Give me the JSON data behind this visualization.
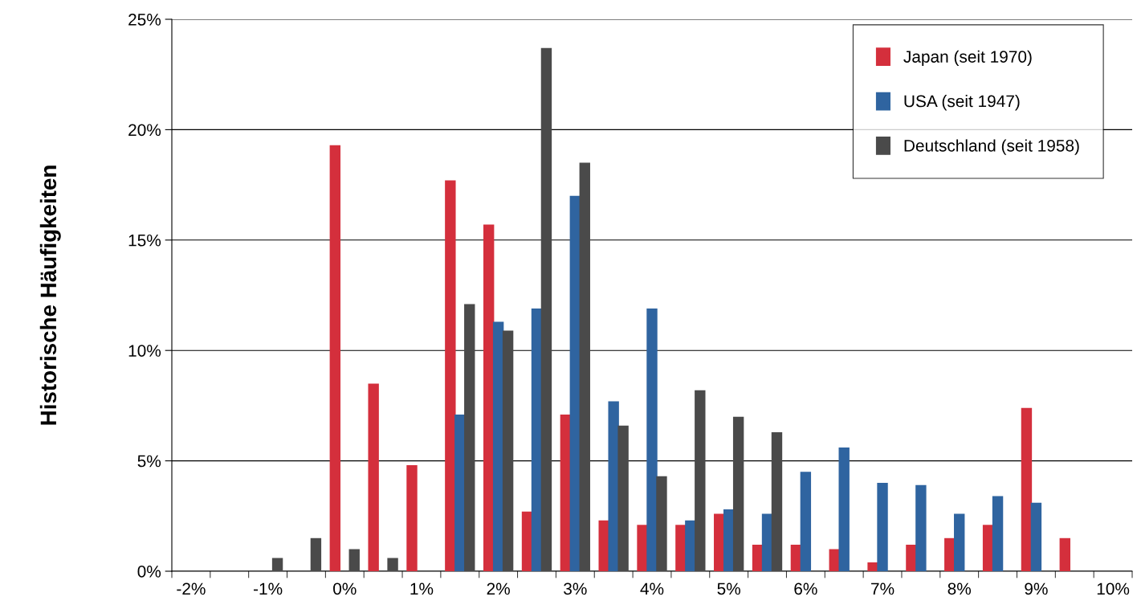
{
  "chart_data": {
    "type": "bar",
    "ylabel": "Historische Häufigkeiten",
    "categories": [
      "-2%",
      null,
      "-1%",
      null,
      "0%",
      null,
      "1%",
      null,
      "2%",
      null,
      "3%",
      null,
      "4%",
      null,
      "5%",
      null,
      "6%",
      null,
      "7%",
      null,
      "8%",
      null,
      "9%",
      null,
      "10%"
    ],
    "series": [
      {
        "name": "Japan (seit 1970)",
        "color": "#d42f3c",
        "values": [
          0,
          0,
          0,
          0,
          19.3,
          8.5,
          4.8,
          17.7,
          15.7,
          2.7,
          7.1,
          2.3,
          2.1,
          2.1,
          2.6,
          1.2,
          1.2,
          1.0,
          0.4,
          1.2,
          1.5,
          2.1,
          7.4,
          1.5,
          0
        ]
      },
      {
        "name": "USA (seit 1947)",
        "color": "#2f64a0",
        "values": [
          0,
          0,
          0,
          0,
          0,
          0,
          0,
          7.1,
          11.3,
          11.9,
          17.0,
          7.7,
          11.9,
          2.3,
          2.8,
          2.6,
          4.5,
          5.6,
          4.0,
          3.9,
          2.6,
          3.4,
          3.1,
          0,
          0
        ]
      },
      {
        "name": "Deutschland (seit 1958)",
        "color": "#4a4a4a",
        "values": [
          0,
          0,
          0.6,
          1.5,
          1.0,
          0.6,
          0,
          12.1,
          10.9,
          23.7,
          18.5,
          6.6,
          4.3,
          8.2,
          7.0,
          6.3,
          0,
          0,
          0,
          0,
          0,
          0,
          0,
          0,
          0
        ]
      }
    ],
    "ylim": [
      0,
      25
    ],
    "yticks": [
      {
        "value": 0,
        "label": "0%"
      },
      {
        "value": 5,
        "label": "5%"
      },
      {
        "value": 10,
        "label": "10%"
      },
      {
        "value": 15,
        "label": "15%"
      },
      {
        "value": 20,
        "label": "20%"
      },
      {
        "value": 25,
        "label": "25%"
      }
    ],
    "grid": "y",
    "legend": "top right"
  }
}
